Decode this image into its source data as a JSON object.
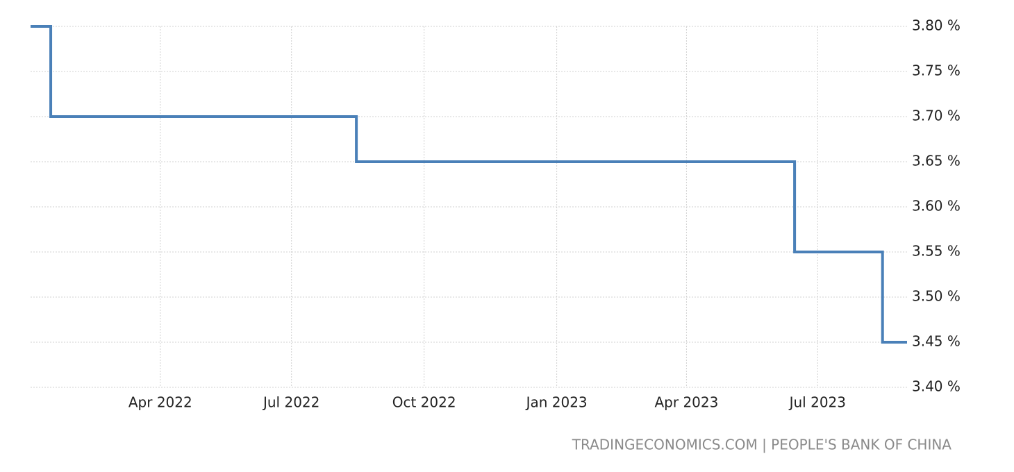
{
  "chart_data": {
    "type": "step-line",
    "source": "TRADINGECONOMICS.COM | PEOPLE'S BANK OF CHINA",
    "x": [
      "2021-12",
      "2022-01",
      "2022-08",
      "2023-06",
      "2023-08"
    ],
    "series": [
      {
        "color": "#4a80b8",
        "values": [
          3.8,
          3.7,
          3.65,
          3.55,
          3.45
        ]
      }
    ],
    "xlim": [
      "2022-01",
      "2023-09"
    ],
    "xticks": [
      {
        "value": "2022-04",
        "label": "Apr 2022"
      },
      {
        "value": "2022-07",
        "label": "Jul 2022"
      },
      {
        "value": "2022-10",
        "label": "Oct 2022"
      },
      {
        "value": "2023-01",
        "label": "Jan 2023"
      },
      {
        "value": "2023-04",
        "label": "Apr 2023"
      },
      {
        "value": "2023-07",
        "label": "Jul 2023"
      }
    ],
    "ylim": [
      3.4,
      3.8
    ],
    "yticks": [
      {
        "value": 3.4,
        "label": "3.40 %"
      },
      {
        "value": 3.45,
        "label": "3.45 %"
      },
      {
        "value": 3.5,
        "label": "3.50 %"
      },
      {
        "value": 3.55,
        "label": "3.55 %"
      },
      {
        "value": 3.6,
        "label": "3.60 %"
      },
      {
        "value": 3.65,
        "label": "3.65 %"
      },
      {
        "value": 3.7,
        "label": "3.70 %"
      },
      {
        "value": 3.75,
        "label": "3.75 %"
      },
      {
        "value": 3.8,
        "label": "3.80 %"
      }
    ],
    "grid": true
  }
}
